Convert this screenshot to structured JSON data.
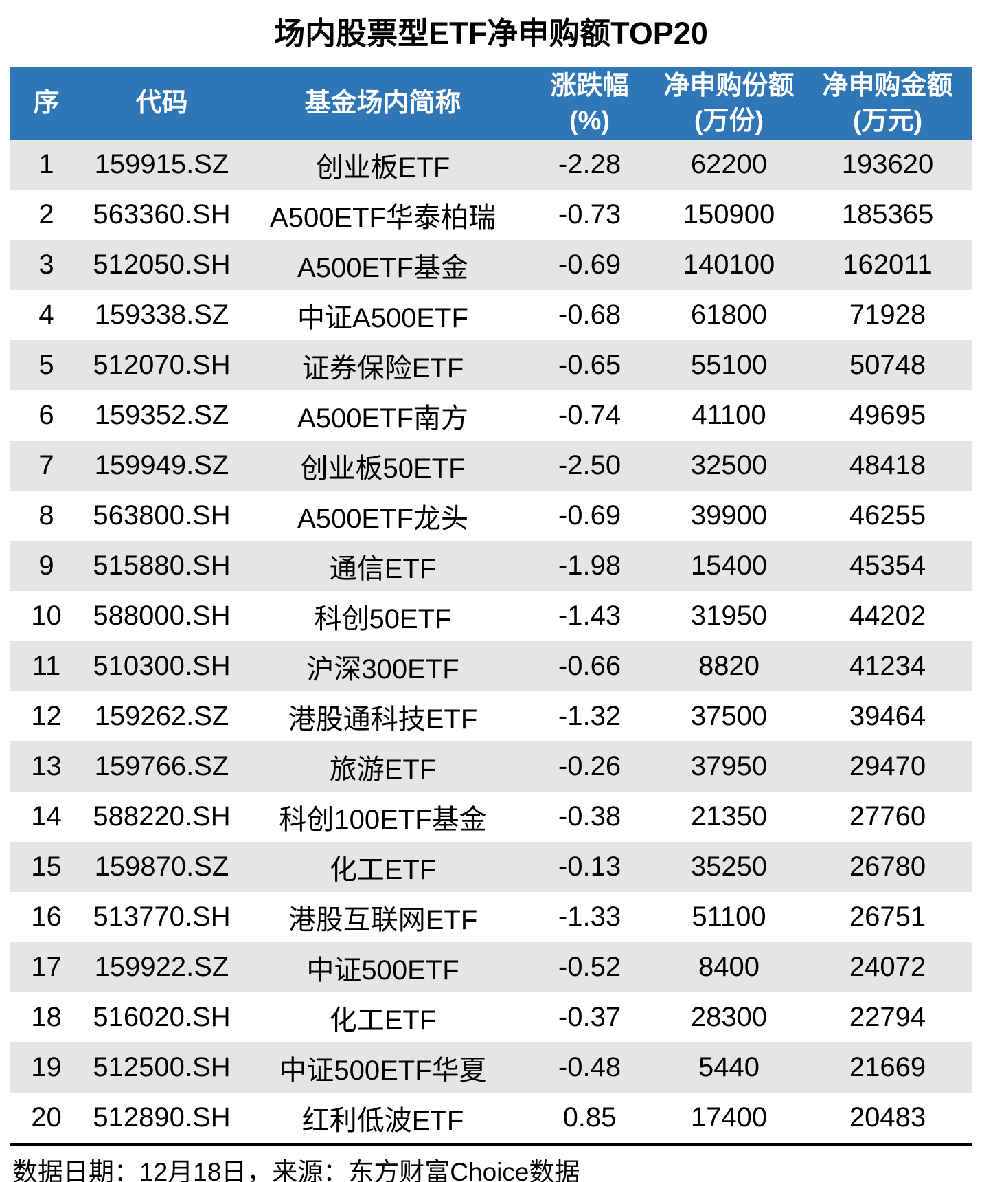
{
  "colors": {
    "header_bg": "#2F76B6",
    "header_text": "#FFFFFF",
    "row_bg": "#FFFFFF",
    "row_alt_bg": "#E6E5E5",
    "divider": "#000000",
    "title_text": "#000000",
    "body_text": "#000000"
  },
  "chart_data": {
    "type": "table",
    "title": "场内股票型ETF净申购额TOP20",
    "columns": [
      {
        "label": "序",
        "sub": ""
      },
      {
        "label": "代码",
        "sub": ""
      },
      {
        "label": "基金场内简称",
        "sub": ""
      },
      {
        "label": "涨跌幅",
        "sub": "(%)"
      },
      {
        "label": "净申购份额",
        "sub": "(万份)"
      },
      {
        "label": "净申购金额",
        "sub": "(万元)"
      }
    ],
    "rows": [
      [
        "1",
        "159915.SZ",
        "创业板ETF",
        "-2.28",
        "62200",
        "193620"
      ],
      [
        "2",
        "563360.SH",
        "A500ETF华泰柏瑞",
        "-0.73",
        "150900",
        "185365"
      ],
      [
        "3",
        "512050.SH",
        "A500ETF基金",
        "-0.69",
        "140100",
        "162011"
      ],
      [
        "4",
        "159338.SZ",
        "中证A500ETF",
        "-0.68",
        "61800",
        "71928"
      ],
      [
        "5",
        "512070.SH",
        "证券保险ETF",
        "-0.65",
        "55100",
        "50748"
      ],
      [
        "6",
        "159352.SZ",
        "A500ETF南方",
        "-0.74",
        "41100",
        "49695"
      ],
      [
        "7",
        "159949.SZ",
        "创业板50ETF",
        "-2.50",
        "32500",
        "48418"
      ],
      [
        "8",
        "563800.SH",
        "A500ETF龙头",
        "-0.69",
        "39900",
        "46255"
      ],
      [
        "9",
        "515880.SH",
        "通信ETF",
        "-1.98",
        "15400",
        "45354"
      ],
      [
        "10",
        "588000.SH",
        "科创50ETF",
        "-1.43",
        "31950",
        "44202"
      ],
      [
        "11",
        "510300.SH",
        "沪深300ETF",
        "-0.66",
        "8820",
        "41234"
      ],
      [
        "12",
        "159262.SZ",
        "港股通科技ETF",
        "-1.32",
        "37500",
        "39464"
      ],
      [
        "13",
        "159766.SZ",
        "旅游ETF",
        "-0.26",
        "37950",
        "29470"
      ],
      [
        "14",
        "588220.SH",
        "科创100ETF基金",
        "-0.38",
        "21350",
        "27760"
      ],
      [
        "15",
        "159870.SZ",
        "化工ETF",
        "-0.13",
        "35250",
        "26780"
      ],
      [
        "16",
        "513770.SH",
        "港股互联网ETF",
        "-1.33",
        "51100",
        "26751"
      ],
      [
        "17",
        "159922.SZ",
        "中证500ETF",
        "-0.52",
        "8400",
        "24072"
      ],
      [
        "18",
        "516020.SH",
        "化工ETF",
        "-0.37",
        "28300",
        "22794"
      ],
      [
        "19",
        "512500.SH",
        "中证500ETF华夏",
        "-0.48",
        "5440",
        "21669"
      ],
      [
        "20",
        "512890.SH",
        "红利低波ETF",
        "0.85",
        "17400",
        "20483"
      ]
    ],
    "footer": "数据日期：12月18日，来源：东方财富Choice数据",
    "layout": {
      "stripe_pattern": "odd-rows-gray",
      "alignment": "center",
      "header_lines": 2,
      "grid": "none"
    }
  }
}
